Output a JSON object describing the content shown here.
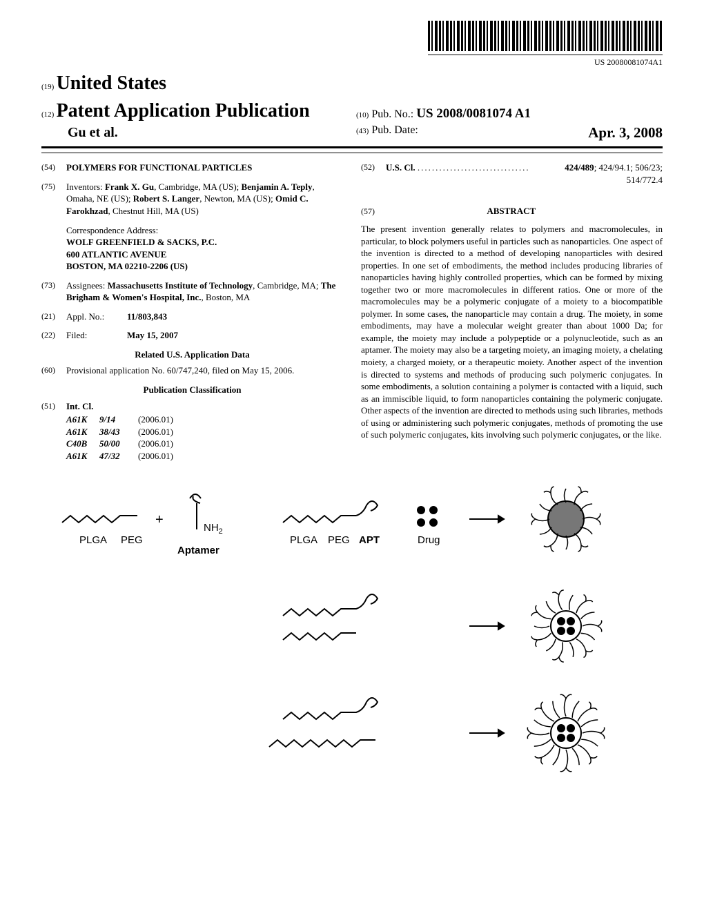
{
  "barcode_text": "US 20080081074A1",
  "header": {
    "field19_num": "(19)",
    "country": "United States",
    "field12_num": "(12)",
    "pub_title": "Patent Application Publication",
    "authors": "Gu et al.",
    "field10_num": "(10)",
    "pub_no_label": "Pub. No.:",
    "pub_no": "US 2008/0081074 A1",
    "field43_num": "(43)",
    "pub_date_label": "Pub. Date:",
    "pub_date": "Apr. 3, 2008"
  },
  "left": {
    "f54_num": "(54)",
    "f54_title": "POLYMERS FOR FUNCTIONAL PARTICLES",
    "f75_num": "(75)",
    "f75_label": "Inventors:",
    "inventors": [
      {
        "name": "Frank X. Gu",
        "loc": "Cambridge, MA (US);"
      },
      {
        "name": "Benjamin A. Teply",
        "loc": "Omaha, NE (US);"
      },
      {
        "name": "Robert S. Langer",
        "loc": "Newton, MA (US);"
      },
      {
        "name": "Omid C. Farokhzad",
        "loc": "Chestnut Hill, MA (US)"
      }
    ],
    "corr_label": "Correspondence Address:",
    "corr1": "WOLF GREENFIELD & SACKS, P.C.",
    "corr2": "600 ATLANTIC AVENUE",
    "corr3": "BOSTON, MA 02210-2206 (US)",
    "f73_num": "(73)",
    "f73_label": "Assignees:",
    "assignee1_name": "Massachusetts Institute of Technology",
    "assignee1_loc": ", Cambridge, MA; ",
    "assignee2_name": "The Brigham & Women's Hospital, Inc.",
    "assignee2_loc": ", Boston, MA",
    "f21_num": "(21)",
    "f21_label": "Appl. No.:",
    "f21_val": "11/803,843",
    "f22_num": "(22)",
    "f22_label": "Filed:",
    "f22_val": "May 15, 2007",
    "related_hdr": "Related U.S. Application Data",
    "f60_num": "(60)",
    "f60_text": "Provisional application No. 60/747,240, filed on May 15, 2006.",
    "pubclass_hdr": "Publication Classification",
    "f51_num": "(51)",
    "f51_label": "Int. Cl.",
    "intcl": [
      {
        "class": "A61K",
        "sub": "9/14",
        "year": "(2006.01)"
      },
      {
        "class": "A61K",
        "sub": "38/43",
        "year": "(2006.01)"
      },
      {
        "class": "C40B",
        "sub": "50/00",
        "year": "(2006.01)"
      },
      {
        "class": "A61K",
        "sub": "47/32",
        "year": "(2006.01)"
      }
    ]
  },
  "right": {
    "f52_num": "(52)",
    "f52_label": "U.S. Cl.",
    "f52_main": "424/489",
    "f52_rest": "; 424/94.1; 506/23; 514/772.4",
    "f57_num": "(57)",
    "abstract_label": "ABSTRACT",
    "abstract": "The present invention generally relates to polymers and macromolecules, in particular, to block polymers useful in particles such as nanoparticles. One aspect of the invention is directed to a method of developing nanoparticles with desired properties. In one set of embodiments, the method includes producing libraries of nanoparticles having highly controlled properties, which can be formed by mixing together two or more macromolecules in different ratios. One or more of the macromolecules may be a polymeric conjugate of a moiety to a biocompatible polymer. In some cases, the nanoparticle may contain a drug. The moiety, in some embodiments, may have a molecular weight greater than about 1000 Da; for example, the moiety may include a polypeptide or a polynucleotide, such as an aptamer. The moiety may also be a targeting moiety, an imaging moiety, a chelating moiety, a charged moiety, or a therapeutic moiety. Another aspect of the invention is directed to systems and methods of producing such polymeric conjugates. In some embodiments, a solution containing a polymer is contacted with a liquid, such as an immiscible liquid, to form nanoparticles containing the polymeric conjugate. Other aspects of the invention are directed to methods using such libraries, methods of using or administering such polymeric conjugates, methods of promoting the use of such polymeric conjugates, kits involving such polymeric conjugates, or the like."
  },
  "figure": {
    "labels": {
      "plga": "PLGA",
      "peg": "PEG",
      "nh2": "NH",
      "nh2_sub": "2",
      "aptamer": "Aptamer",
      "apt": "APT",
      "drug": "Drug",
      "plus": "+"
    },
    "colors": {
      "stroke": "#000000",
      "fill_dark": "#555555",
      "fill_light": "#bbbbbb"
    },
    "font": {
      "family": "Arial, Helvetica, sans-serif",
      "size": 15,
      "weight": "normal"
    }
  }
}
